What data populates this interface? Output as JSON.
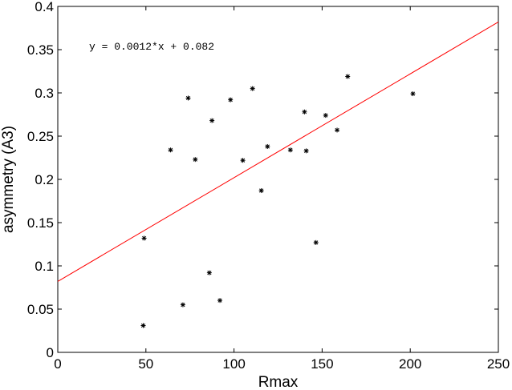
{
  "chart_data": {
    "type": "scatter",
    "xlabel": "Rmax",
    "ylabel": "asymmetry (A3)",
    "xlim": [
      0,
      250
    ],
    "ylim": [
      0,
      0.4
    ],
    "xticks": [
      0,
      50,
      100,
      150,
      200,
      250
    ],
    "xtick_labels": [
      "0",
      "50",
      "100",
      "150",
      "200",
      "250"
    ],
    "yticks": [
      0,
      0.05,
      0.1,
      0.15,
      0.2,
      0.25,
      0.3,
      0.35,
      0.4
    ],
    "ytick_labels": [
      "0",
      "0.05",
      "0.1",
      "0.15",
      "0.2",
      "0.25",
      "0.3",
      "0.35",
      "0.4"
    ],
    "grid": false,
    "annotation": "y = 0.0012*x + 0.082",
    "points": [
      {
        "x": 48.5,
        "y": 0.031
      },
      {
        "x": 49,
        "y": 0.132
      },
      {
        "x": 64,
        "y": 0.234
      },
      {
        "x": 71,
        "y": 0.055
      },
      {
        "x": 74,
        "y": 0.294
      },
      {
        "x": 78,
        "y": 0.223
      },
      {
        "x": 86,
        "y": 0.092
      },
      {
        "x": 87.5,
        "y": 0.268
      },
      {
        "x": 92,
        "y": 0.06
      },
      {
        "x": 98,
        "y": 0.292
      },
      {
        "x": 105,
        "y": 0.222
      },
      {
        "x": 110.5,
        "y": 0.305
      },
      {
        "x": 115.5,
        "y": 0.187
      },
      {
        "x": 119,
        "y": 0.238
      },
      {
        "x": 132,
        "y": 0.234
      },
      {
        "x": 140,
        "y": 0.278
      },
      {
        "x": 141,
        "y": 0.233
      },
      {
        "x": 146.5,
        "y": 0.127
      },
      {
        "x": 152,
        "y": 0.274
      },
      {
        "x": 158.5,
        "y": 0.257
      },
      {
        "x": 164.5,
        "y": 0.319
      },
      {
        "x": 201.5,
        "y": 0.299
      }
    ],
    "fit_line": {
      "slope": 0.0012,
      "intercept": 0.082,
      "color": "#ff0000"
    },
    "marker": "*",
    "marker_color": "#000000"
  }
}
